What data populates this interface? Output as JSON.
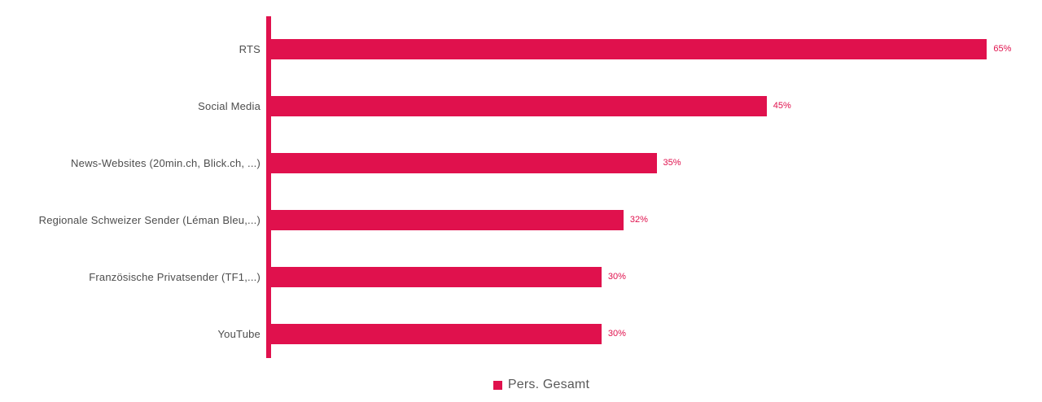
{
  "colors": {
    "accent": "#E0114D",
    "category_label": "#4d4d4d",
    "legend_label": "#595959",
    "background": "#ffffff"
  },
  "legend": {
    "label": "Pers. Gesamt",
    "marker_color": "#E0114D",
    "position": "bottom-center"
  },
  "chart_data": {
    "type": "bar",
    "orientation": "horizontal",
    "title": "",
    "xlabel": "",
    "ylabel": "",
    "categories": [
      "RTS",
      "Social Media",
      "News-Websites (20min.ch, Blick.ch, ...)",
      "Regionale Schweizer Sender (Léman Bleu,...)",
      "Französische Privatsender (TF1,...)",
      "YouTube"
    ],
    "series": [
      {
        "name": "Pers. Gesamt",
        "values": [
          65,
          45,
          35,
          32,
          30,
          30
        ],
        "value_labels": [
          "65%",
          "45%",
          "35%",
          "32%",
          "30%",
          "30%"
        ],
        "color": "#E0114D"
      }
    ],
    "xlim": [
      0,
      70
    ],
    "grid": false,
    "value_labels_shown": true,
    "legend_position": "bottom-center"
  }
}
